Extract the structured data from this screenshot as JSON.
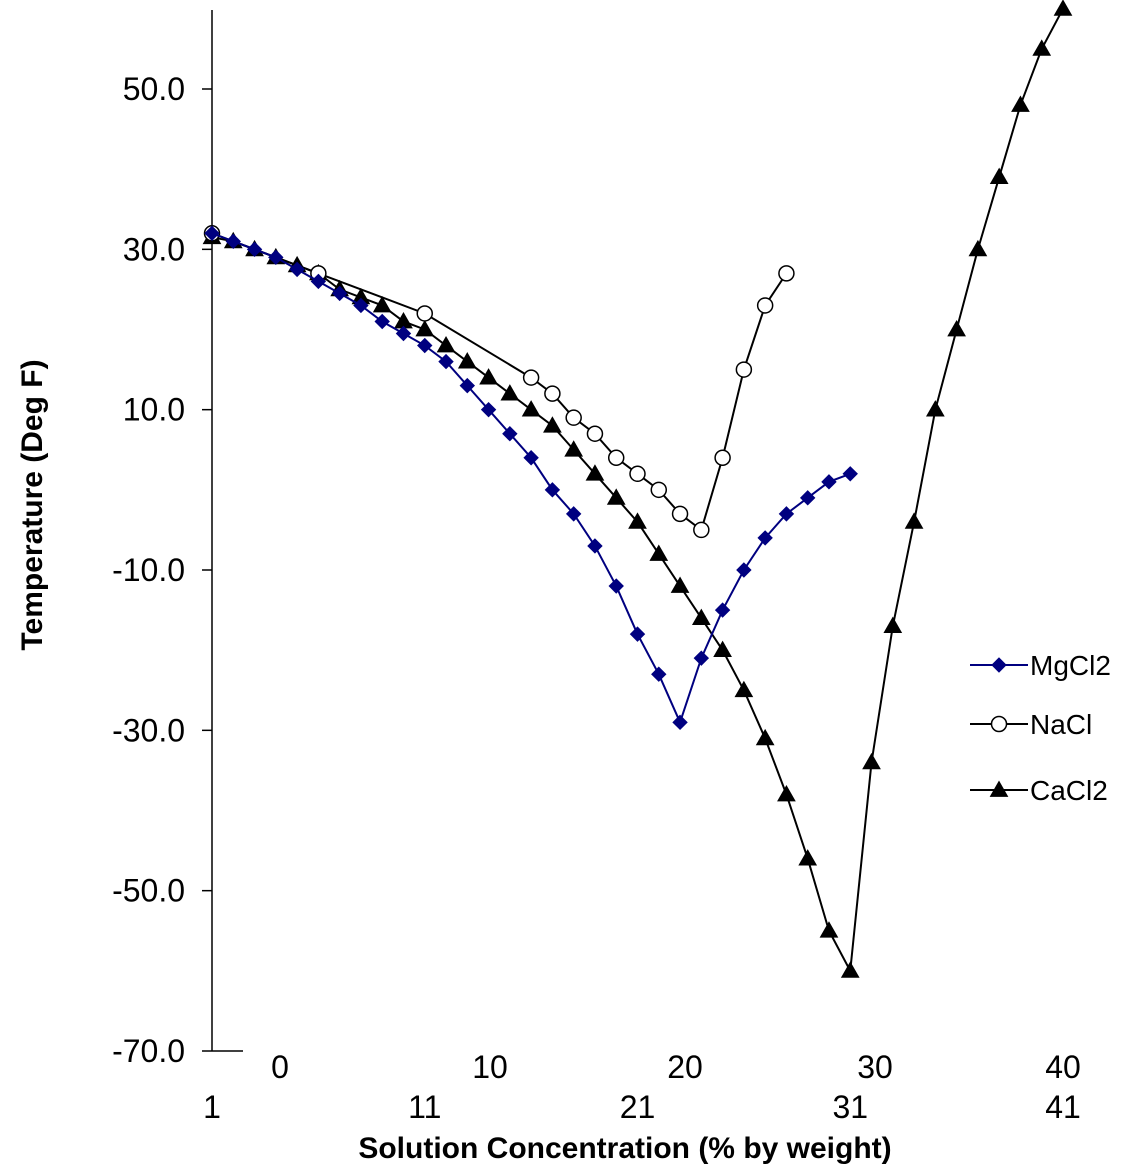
{
  "chart_data": {
    "type": "line",
    "title": "",
    "xlabel": "Solution Concentration (% by weight)",
    "ylabel": "Temperature (Deg F)",
    "xlim": [
      0,
      41
    ],
    "ylim": [
      -70,
      60
    ],
    "y_ticks": [
      {
        "value": 50,
        "label": "50.0"
      },
      {
        "value": 30,
        "label": "30.0"
      },
      {
        "value": 10,
        "label": "10.0"
      },
      {
        "value": -10,
        "label": "-10.0"
      },
      {
        "value": -30,
        "label": "-30.0"
      },
      {
        "value": -50,
        "label": "-50.0"
      },
      {
        "value": -70,
        "label": "-70.0"
      }
    ],
    "x_ticks_inner": [
      {
        "value": 3,
        "label": "0"
      },
      {
        "value": 13,
        "label": "10"
      },
      {
        "value": 23,
        "label": "20"
      },
      {
        "value": 33,
        "label": "30"
      },
      {
        "value": 40,
        "label": "40"
      }
    ],
    "x_ticks_outer": [
      {
        "value": 1,
        "label": "1"
      },
      {
        "value": 11,
        "label": "11"
      },
      {
        "value": 21,
        "label": "21"
      },
      {
        "value": 31,
        "label": "31"
      },
      {
        "value": 41,
        "label": "41"
      }
    ],
    "grid": false,
    "legend": "right",
    "series": [
      {
        "name": "MgCl2",
        "color": "#000080",
        "marker": "diamond",
        "x": [
          1,
          2,
          3,
          4,
          5,
          6,
          7,
          8,
          9,
          10,
          11,
          12,
          13,
          14,
          15,
          16,
          17,
          18,
          19,
          20,
          21,
          22,
          23,
          24,
          25,
          26,
          27,
          28,
          29,
          30,
          31
        ],
        "y": [
          32,
          31,
          30,
          29,
          27.5,
          26,
          24.5,
          23,
          21,
          19.5,
          18,
          16,
          13,
          10,
          7,
          4,
          0,
          -3,
          -7,
          -12,
          -18,
          -23,
          -29,
          -21,
          -15,
          -10,
          -6,
          -3,
          -1,
          1,
          2
        ]
      },
      {
        "name": "NaCl",
        "color": "#000000",
        "marker": "circle-open",
        "x": [
          1,
          6,
          11,
          16,
          17,
          18,
          19,
          20,
          21,
          22,
          23,
          24,
          25,
          26,
          27,
          28
        ],
        "y": [
          32,
          27,
          22,
          14,
          12,
          9,
          7,
          4,
          2,
          0,
          -3,
          -5,
          4,
          15,
          23,
          27
        ]
      },
      {
        "name": "CaCl2",
        "color": "#000000",
        "marker": "triangle",
        "x": [
          1,
          2,
          3,
          4,
          5,
          6,
          7,
          8,
          9,
          10,
          11,
          12,
          13,
          14,
          15,
          16,
          17,
          18,
          19,
          20,
          21,
          22,
          23,
          24,
          25,
          26,
          27,
          28,
          29,
          30,
          31,
          32,
          33,
          34,
          35,
          36,
          37,
          38,
          39,
          40,
          41
        ],
        "y": [
          31.5,
          31,
          30,
          29,
          28,
          27,
          25,
          24,
          23,
          21,
          20,
          18,
          16,
          14,
          12,
          10,
          8,
          5,
          2,
          -1,
          -4,
          -8,
          -12,
          -16,
          -20,
          -25,
          -31,
          -38,
          -46,
          -55,
          -60,
          -34,
          -17,
          -4,
          10,
          20,
          30,
          39,
          48,
          55,
          60
        ]
      }
    ]
  }
}
